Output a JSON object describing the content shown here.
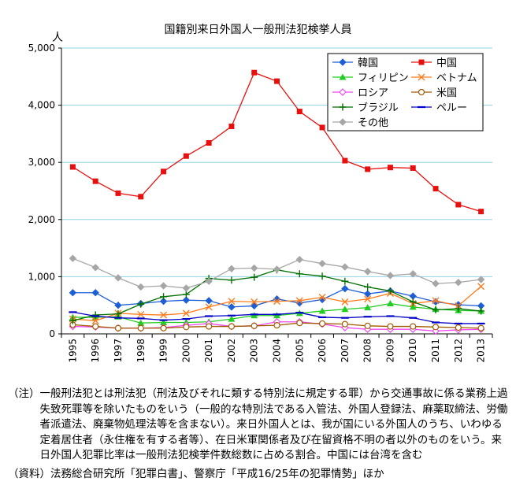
{
  "chart_data": {
    "type": "line",
    "title": "国籍別来日外国人一般刑法犯検挙人員",
    "ylabel": "人",
    "xlabel": "",
    "ylim": [
      0,
      5000
    ],
    "yticks": [
      "0",
      "1,000",
      "2,000",
      "3,000",
      "4,000",
      "5,000"
    ],
    "grid": true,
    "legend_position": "top-right",
    "x": [
      "1995",
      "1996",
      "1997",
      "1998",
      "1999",
      "2000",
      "2001",
      "2002",
      "2003",
      "2004",
      "2005",
      "2006",
      "2007",
      "2008",
      "2009",
      "2010",
      "2011",
      "2012",
      "2013"
    ],
    "series": [
      {
        "name": "韓国",
        "color": "#1f5fd6",
        "marker": "diamond",
        "values": [
          720,
          720,
          500,
          530,
          570,
          590,
          580,
          470,
          490,
          610,
          540,
          600,
          790,
          700,
          750,
          660,
          560,
          510,
          490
        ]
      },
      {
        "name": "中国",
        "color": "#e8100e",
        "marker": "square",
        "values": [
          2920,
          2670,
          2460,
          2400,
          2840,
          3110,
          3340,
          3630,
          4570,
          4420,
          3890,
          3610,
          3030,
          2880,
          2910,
          2900,
          2540,
          2260,
          2140
        ]
      },
      {
        "name": "フィリピン",
        "color": "#22cc22",
        "marker": "triangle",
        "values": [
          290,
          290,
          300,
          190,
          200,
          200,
          210,
          260,
          320,
          320,
          360,
          400,
          430,
          460,
          530,
          470,
          430,
          410,
          400
        ]
      },
      {
        "name": "ベトナム",
        "color": "#ff7b1c",
        "marker": "x",
        "values": [
          260,
          230,
          360,
          340,
          330,
          360,
          470,
          570,
          560,
          570,
          580,
          640,
          560,
          610,
          710,
          530,
          580,
          490,
          830
        ]
      },
      {
        "name": "ロシア",
        "color": "#f049f0",
        "marker": "diamond-open",
        "values": [
          130,
          120,
          100,
          100,
          110,
          150,
          180,
          130,
          140,
          210,
          210,
          170,
          110,
          80,
          80,
          80,
          50,
          70,
          80
        ]
      },
      {
        "name": "米国",
        "color": "#a05a00",
        "marker": "circle-open",
        "values": [
          160,
          130,
          100,
          100,
          100,
          120,
          130,
          130,
          140,
          150,
          190,
          180,
          170,
          140,
          130,
          130,
          120,
          110,
          100
        ]
      },
      {
        "name": "ブラジル",
        "color": "#007000",
        "marker": "plus",
        "values": [
          230,
          330,
          350,
          520,
          650,
          690,
          970,
          940,
          990,
          1120,
          1050,
          1010,
          920,
          820,
          750,
          560,
          420,
          440,
          400
        ]
      },
      {
        "name": "ペルー",
        "color": "#0000c8",
        "marker": "dash",
        "values": [
          380,
          310,
          280,
          270,
          240,
          260,
          310,
          320,
          340,
          340,
          370,
          290,
          280,
          300,
          310,
          280,
          200,
          180,
          180
        ]
      },
      {
        "name": "その他",
        "color": "#a6a6a6",
        "marker": "diamond",
        "values": [
          1320,
          1160,
          980,
          820,
          840,
          800,
          920,
          1140,
          1150,
          1130,
          1300,
          1230,
          1170,
          1090,
          1020,
          1050,
          880,
          900,
          950
        ]
      }
    ]
  },
  "notes": {
    "note_head": "（注）",
    "note_body": "一般刑法犯とは刑法犯（刑法及びそれに類する特別法に規定する罪）から交通事故に係る業務上過失致死罪等を除いたものをいう（一般的な特別法である入管法、外国人登録法、麻薬取締法、労働者派遣法、廃棄物処理法等を含まない）。来日外国人とは、我が国にいる外国人のうち、いわゆる定着居住者（永住権を有する者等）、在日米軍関係者及び在留資格不明の者以外のものをいう。来日外国人犯罪比率は一般刑法犯検挙件数総数に占める割合。中国には台湾を含む",
    "source": "（資料）法務総合研究所「犯罪白書」、警察庁「平成16/25年の犯罪情勢」ほか"
  }
}
